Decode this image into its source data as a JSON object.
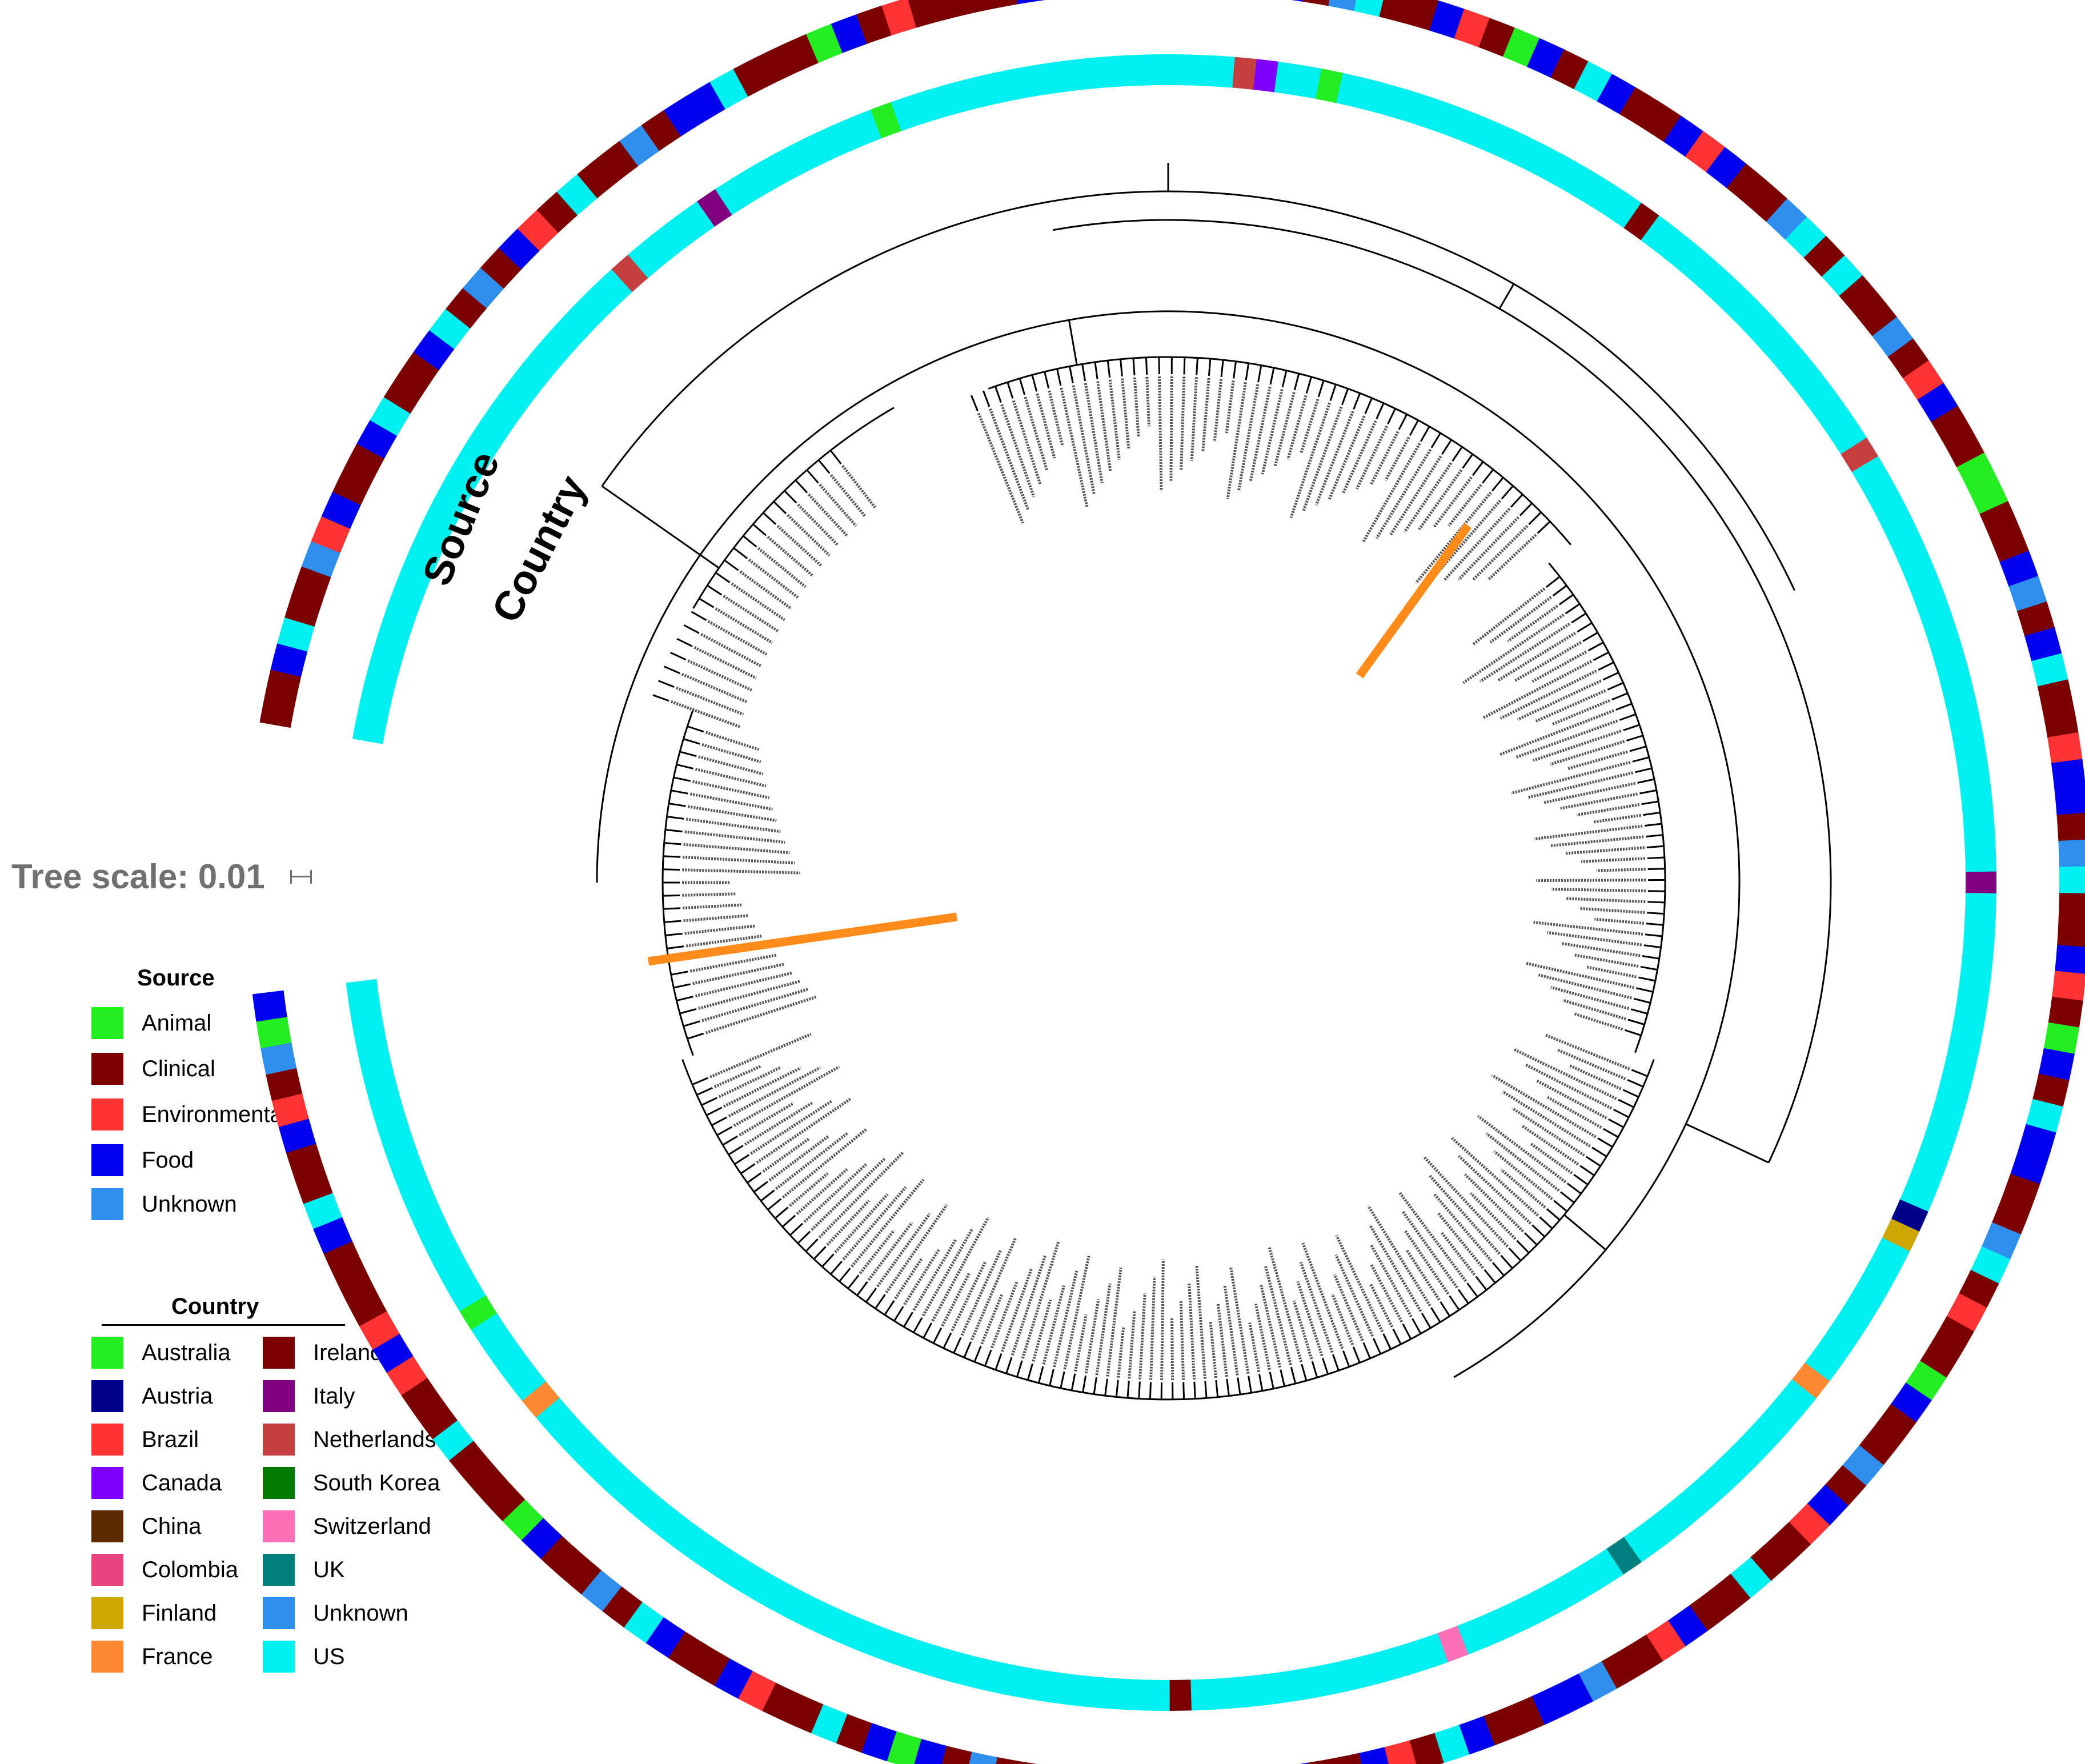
{
  "figure": {
    "ring_labels": {
      "source": "Source",
      "country": "Country"
    },
    "tree_scale": "Tree scale: 0.01"
  },
  "legend": {
    "source": {
      "title": "Source",
      "items": [
        {
          "label": "Animal",
          "color": "#22ee22"
        },
        {
          "label": "Clinical",
          "color": "#7b0000"
        },
        {
          "label": "Environmental",
          "color": "#ff3333"
        },
        {
          "label": "Food",
          "color": "#0000ee"
        },
        {
          "label": "Unknown",
          "color": "#2f8fef"
        }
      ]
    },
    "country": {
      "title": "Country",
      "items": [
        {
          "label": "Australia",
          "color": "#22ee22"
        },
        {
          "label": "Austria",
          "color": "#00008b"
        },
        {
          "label": "Brazil",
          "color": "#ff3333"
        },
        {
          "label": "Canada",
          "color": "#7f00ff"
        },
        {
          "label": "China",
          "color": "#5a2a00"
        },
        {
          "label": "Colombia",
          "color": "#e8437c"
        },
        {
          "label": "Finland",
          "color": "#cca700"
        },
        {
          "label": "France",
          "color": "#ff8833"
        },
        {
          "label": "Ireland",
          "color": "#7b0000"
        },
        {
          "label": "Italy",
          "color": "#800080"
        },
        {
          "label": "Netherlands",
          "color": "#c43f3f"
        },
        {
          "label": "South Korea",
          "color": "#007a00"
        },
        {
          "label": "Switzerland",
          "color": "#ff70b8"
        },
        {
          "label": "UK",
          "color": "#007f7f"
        },
        {
          "label": "Unknown",
          "color": "#2f8fef"
        },
        {
          "label": "US",
          "color": "#00f0f0"
        }
      ]
    }
  },
  "ring_sequences": {
    "source": "CCFDCCUEFCCFDCCFDCUCFECDCCUCFFDCCCAFCECCCCFCCUFDCCEFFCUDCCFECAFCDFCCFEFCCUDCDCCUCEFCCAACCFUCFDCCEFFCUDCCFECAFCDFFCCUDCECCAFCCUCFECCDCCFECCUFFCCFDCEFCCFFUAFCCDFECCUCFAFCDCCEFCCFDCUCCFACCCDCCEFECCCFDCCFECUAF",
    "country": "UUUUUUUUUUUUUUUUUUUUUUUUUKUUUUIUUUUUUUUAUUUUUUUUUUUUUUUUKNUUAUUUUUUUUUUUUUUUCUUUUUUUUUUUUUUKUUUUUUUUUUUUUUUUUUUUIUUUUUUUUUUUUUUUZWUUUUUUUFUUUUUUUUUUUTUUUUUUUUSUUUUUUUUUUUUCUUUUUUUUUUUUUUUUUUUUUUUUUUUUUUUUUFUUUUAUUUUUUUUUUUUUUUU"
  }
}
